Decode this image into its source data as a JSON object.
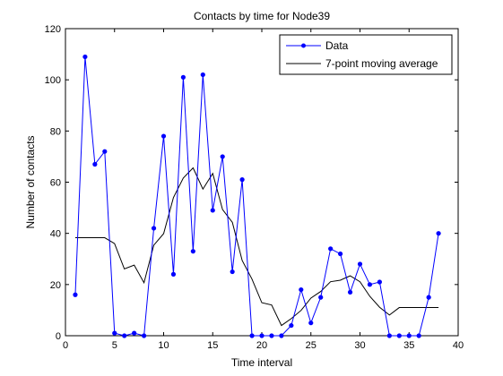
{
  "chart_data": {
    "type": "line",
    "title": "Contacts by time for Node39",
    "xlabel": "Time interval",
    "ylabel": "Number of contacts",
    "xlim": [
      0,
      40
    ],
    "ylim": [
      0,
      120
    ],
    "xticks": [
      0,
      5,
      10,
      15,
      20,
      25,
      30,
      35,
      40
    ],
    "yticks": [
      0,
      20,
      40,
      60,
      80,
      100,
      120
    ],
    "grid": false,
    "legend_position": "top-right",
    "series": [
      {
        "name": "Data",
        "color": "#0000ff",
        "marker": "dot",
        "x": [
          1,
          2,
          3,
          4,
          5,
          6,
          7,
          8,
          9,
          10,
          11,
          12,
          13,
          14,
          15,
          16,
          17,
          18,
          19,
          20,
          21,
          22,
          23,
          24,
          25,
          26,
          27,
          28,
          29,
          30,
          31,
          32,
          33,
          34,
          35,
          36,
          37,
          38
        ],
        "y": [
          16,
          109,
          67,
          72,
          1,
          0,
          1,
          0,
          42,
          78,
          24,
          101,
          33,
          102,
          49,
          70,
          25,
          61,
          0,
          0,
          0,
          0,
          4,
          18,
          5,
          15,
          34,
          32,
          17,
          28,
          20,
          21,
          0,
          0,
          0,
          0,
          15,
          40
        ]
      },
      {
        "name": "7-point moving average",
        "color": "#000000",
        "marker": "none",
        "x": [
          1,
          2,
          3,
          4,
          5,
          6,
          7,
          8,
          9,
          10,
          11,
          12,
          13,
          14,
          15,
          16,
          17,
          18,
          19,
          20,
          21,
          22,
          23,
          24,
          25,
          26,
          27,
          28,
          29,
          30,
          31,
          32,
          33,
          34,
          35,
          36,
          37,
          38
        ],
        "y": [
          38.3,
          38.3,
          38.3,
          38.3,
          36.0,
          26.1,
          27.6,
          20.7,
          35.4,
          39.9,
          54.0,
          61.6,
          65.6,
          57.3,
          63.4,
          49.3,
          44.3,
          29.4,
          22.1,
          12.9,
          12.0,
          4.0,
          6.7,
          9.9,
          14.7,
          17.3,
          21.1,
          21.7,
          23.4,
          21.1,
          15.4,
          11.1,
          8.1,
          11.0,
          11.0,
          11.0,
          11.0,
          11.0
        ]
      }
    ]
  }
}
